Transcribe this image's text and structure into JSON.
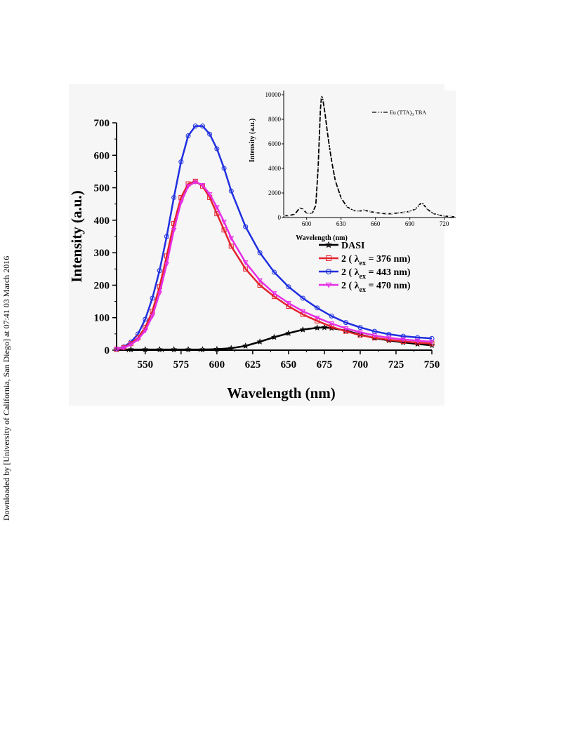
{
  "side_note": "Downloaded by [University of California, San Diego] at 07:41 03 March 2016",
  "chart_data": [
    {
      "type": "line",
      "xlabel": "Wavelength (nm)",
      "ylabel": "Intensity (a.u.)",
      "xlim": [
        530,
        750
      ],
      "ylim": [
        0,
        700
      ],
      "xticks": [
        "550",
        "575",
        "600",
        "625",
        "650",
        "675",
        "700",
        "725",
        "750"
      ],
      "yticks": [
        "0",
        "100",
        "200",
        "300",
        "400",
        "500",
        "600",
        "700"
      ],
      "grid": false,
      "legend_position": "right-middle",
      "series": [
        {
          "name": "DASI",
          "color": "#000000",
          "marker": "star",
          "x": [
            530,
            540,
            550,
            560,
            570,
            580,
            590,
            600,
            610,
            620,
            630,
            640,
            650,
            660,
            670,
            675,
            680,
            690,
            700,
            710,
            720,
            730,
            740,
            750
          ],
          "y": [
            2,
            2,
            2,
            2,
            2,
            2,
            2,
            3,
            6,
            13,
            26,
            40,
            52,
            63,
            69,
            70,
            68,
            60,
            48,
            37,
            30,
            24,
            19,
            15
          ]
        },
        {
          "name_prefix": "2 ( λ",
          "name_sub": "ex",
          "name_suffix": "= 376 nm)",
          "color": "#e3222d",
          "marker": "square",
          "x": [
            530,
            535,
            540,
            545,
            550,
            555,
            560,
            565,
            570,
            575,
            580,
            585,
            590,
            595,
            600,
            605,
            610,
            620,
            630,
            640,
            650,
            660,
            670,
            680,
            690,
            700,
            710,
            720,
            730,
            740,
            750
          ],
          "y": [
            3,
            8,
            20,
            38,
            70,
            120,
            195,
            290,
            390,
            470,
            512,
            520,
            505,
            470,
            420,
            370,
            320,
            250,
            200,
            165,
            135,
            110,
            90,
            72,
            58,
            46,
            38,
            32,
            27,
            23,
            20
          ]
        },
        {
          "name_prefix": "2 ( λ",
          "name_sub": "ex",
          "name_suffix": "= 443 nm)",
          "color": "#1f2fe0",
          "marker": "circle",
          "x": [
            530,
            535,
            540,
            545,
            550,
            555,
            560,
            565,
            570,
            575,
            580,
            585,
            590,
            595,
            600,
            605,
            610,
            620,
            630,
            640,
            650,
            660,
            670,
            680,
            690,
            700,
            710,
            720,
            730,
            740,
            750
          ],
          "y": [
            3,
            10,
            25,
            50,
            95,
            160,
            245,
            350,
            470,
            580,
            660,
            690,
            690,
            665,
            620,
            560,
            490,
            380,
            300,
            240,
            195,
            160,
            130,
            105,
            85,
            70,
            58,
            49,
            43,
            39,
            36
          ]
        },
        {
          "name_prefix": "2 ( λ",
          "name_sub": "ex",
          "name_suffix": "= 470 nm)",
          "color": "#e62ee6",
          "marker": "triangle-down",
          "x": [
            530,
            535,
            540,
            545,
            550,
            555,
            560,
            565,
            570,
            575,
            580,
            585,
            590,
            595,
            600,
            605,
            610,
            620,
            630,
            640,
            650,
            660,
            670,
            680,
            690,
            700,
            710,
            720,
            730,
            740,
            750
          ],
          "y": [
            3,
            7,
            17,
            33,
            60,
            105,
            175,
            265,
            370,
            455,
            505,
            518,
            508,
            480,
            440,
            395,
            345,
            270,
            215,
            175,
            145,
            120,
            100,
            82,
            67,
            55,
            45,
            38,
            33,
            29,
            26
          ]
        }
      ]
    },
    {
      "type": "line",
      "xlabel": "Wavelength (nm)",
      "ylabel": "Intensity (a.u.)",
      "xlim": [
        580,
        730
      ],
      "ylim": [
        0,
        10000
      ],
      "xticks": [
        "600",
        "630",
        "660",
        "690",
        "720"
      ],
      "yticks": [
        "0",
        "2000",
        "4000",
        "6000",
        "8000",
        "10000"
      ],
      "grid": false,
      "legend_position": "top-right",
      "series": [
        {
          "name_prefix": "Eu (TTA)",
          "name_sub": "3",
          "name_suffix": "TBA",
          "color": "#000000",
          "marker": "dash",
          "x": [
            580,
            585,
            590,
            594,
            597,
            600,
            605,
            608,
            610,
            612,
            613,
            614,
            616,
            618,
            620,
            622,
            625,
            630,
            635,
            640,
            645,
            650,
            655,
            660,
            665,
            670,
            675,
            680,
            685,
            690,
            695,
            698,
            700,
            702,
            705,
            710,
            715,
            720,
            725,
            730
          ],
          "y": [
            150,
            150,
            300,
            800,
            650,
            350,
            350,
            1000,
            4000,
            8800,
            9900,
            9700,
            8500,
            7000,
            5700,
            4500,
            3000,
            1600,
            900,
            600,
            500,
            600,
            500,
            400,
            350,
            300,
            320,
            380,
            420,
            500,
            700,
            1000,
            1200,
            1050,
            700,
            350,
            200,
            120,
            80,
            50
          ]
        }
      ]
    }
  ]
}
